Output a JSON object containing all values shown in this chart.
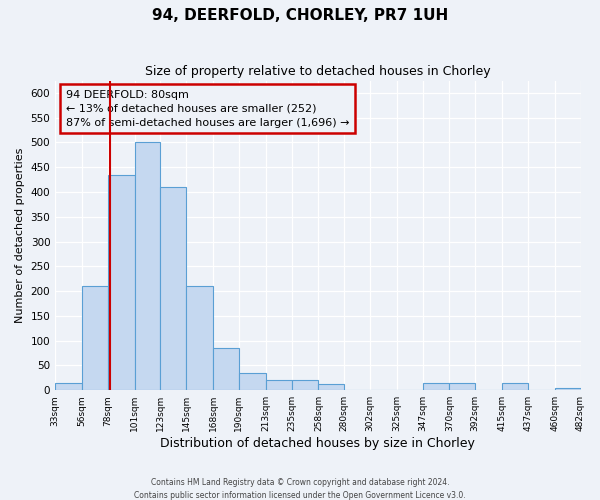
{
  "title": "94, DEERFOLD, CHORLEY, PR7 1UH",
  "subtitle": "Size of property relative to detached houses in Chorley",
  "xlabel": "Distribution of detached houses by size in Chorley",
  "ylabel": "Number of detached properties",
  "bin_edges": [
    33,
    56,
    78,
    101,
    123,
    145,
    168,
    190,
    213,
    235,
    258,
    280,
    302,
    325,
    347,
    370,
    392,
    415,
    437,
    460,
    482
  ],
  "bar_heights": [
    15,
    210,
    435,
    500,
    410,
    210,
    85,
    35,
    20,
    20,
    13,
    0,
    0,
    0,
    15,
    15,
    0,
    15,
    0,
    5
  ],
  "bar_color": "#c5d8f0",
  "bar_edgecolor": "#5a9fd4",
  "ylim": [
    0,
    625
  ],
  "yticks": [
    0,
    50,
    100,
    150,
    200,
    250,
    300,
    350,
    400,
    450,
    500,
    550,
    600
  ],
  "xtick_labels": [
    "33sqm",
    "56sqm",
    "78sqm",
    "101sqm",
    "123sqm",
    "145sqm",
    "168sqm",
    "190sqm",
    "213sqm",
    "235sqm",
    "258sqm",
    "280sqm",
    "302sqm",
    "325sqm",
    "347sqm",
    "370sqm",
    "392sqm",
    "415sqm",
    "437sqm",
    "460sqm",
    "482sqm"
  ],
  "vline_x": 80,
  "vline_color": "#cc0000",
  "annotation_title": "94 DEERFOLD: 80sqm",
  "annotation_line1": "← 13% of detached houses are smaller (252)",
  "annotation_line2": "87% of semi-detached houses are larger (1,696) →",
  "annotation_box_color": "#cc0000",
  "footer1": "Contains HM Land Registry data © Crown copyright and database right 2024.",
  "footer2": "Contains public sector information licensed under the Open Government Licence v3.0.",
  "background_color": "#eef2f8",
  "grid_color": "#d0d8e8"
}
